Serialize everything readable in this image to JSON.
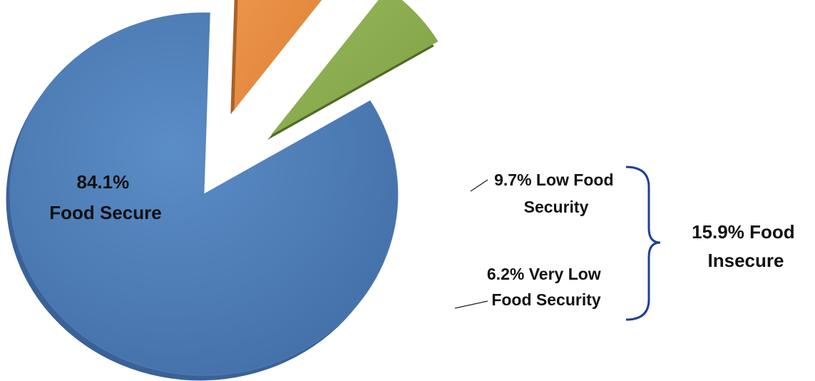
{
  "chart_data": {
    "type": "pie",
    "title": "",
    "categories": [
      "Food Secure",
      "Low Food Security",
      "Very Low Food Security"
    ],
    "values": [
      84.1,
      9.7,
      6.2
    ],
    "unit": "%",
    "exploded": [
      "Low Food Security",
      "Very Low Food Security"
    ],
    "colors": {
      "Food Secure": "#4f81bd",
      "Low Food Security": "#e58a3e",
      "Very Low Food Security": "#8aaa4d"
    },
    "depth_colors": {
      "Food Secure": "#3a6296",
      "Low Food Security": "#a8612a",
      "Very Low Food Security": "#4f6a28"
    },
    "bracket_color": "#1f3f99",
    "labels": {
      "food_secure": [
        "84.1%",
        "Food Secure"
      ],
      "low_food_security": [
        "9.7% Low Food",
        "Security"
      ],
      "very_low_food_security": [
        "6.2% Very Low",
        "Food Security"
      ],
      "food_insecure": [
        "15.9% Food",
        "Insecure"
      ]
    }
  }
}
